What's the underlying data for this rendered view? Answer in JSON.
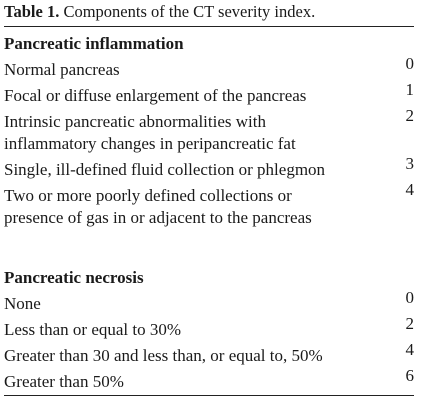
{
  "caption": {
    "label": "Table 1.",
    "text": " Components of the CT severity index."
  },
  "sections": [
    {
      "title": "Pancreatic inflammation",
      "rows": [
        {
          "label": "Normal pancreas",
          "score": "0"
        },
        {
          "label": "Focal or diffuse enlargement of the pancreas",
          "score": "1"
        },
        {
          "label": "Intrinsic pancreatic abnormalities with\ninflammatory changes in peripancreatic fat",
          "score": "2"
        },
        {
          "label": "Single, ill-defined fluid collection or phlegmon",
          "score": "3"
        },
        {
          "label": "Two or more poorly defined collections or\npresence of gas in or adjacent to the pancreas",
          "score": "4"
        }
      ]
    },
    {
      "title": "Pancreatic necrosis",
      "rows": [
        {
          "label": "None",
          "score": "0"
        },
        {
          "label": "Less than or equal to 30%",
          "score": "2"
        },
        {
          "label": "Greater than 30 and less than, or equal to, 50%",
          "score": "4"
        },
        {
          "label": "Greater than 50%",
          "score": "6"
        }
      ]
    }
  ]
}
